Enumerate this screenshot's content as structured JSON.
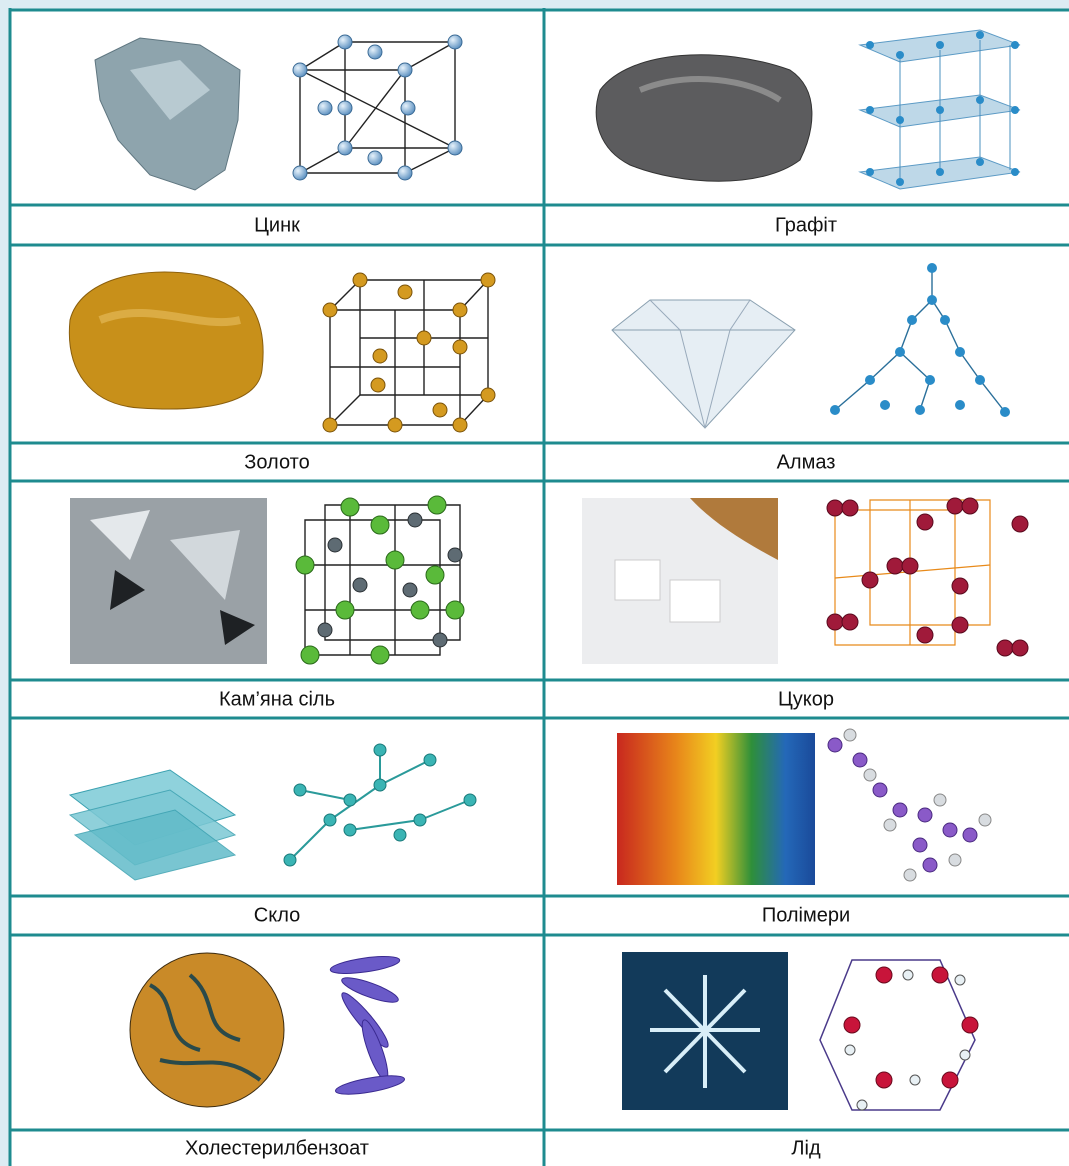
{
  "table": {
    "rows": [
      [
        "Цинк",
        "Графіт"
      ],
      [
        "Золото",
        "Алмаз"
      ],
      [
        "Кам’яна сіль",
        "Цукор"
      ],
      [
        "Скло",
        "Полімери"
      ],
      [
        "Холестерилбензоат",
        "Лід"
      ]
    ]
  }
}
